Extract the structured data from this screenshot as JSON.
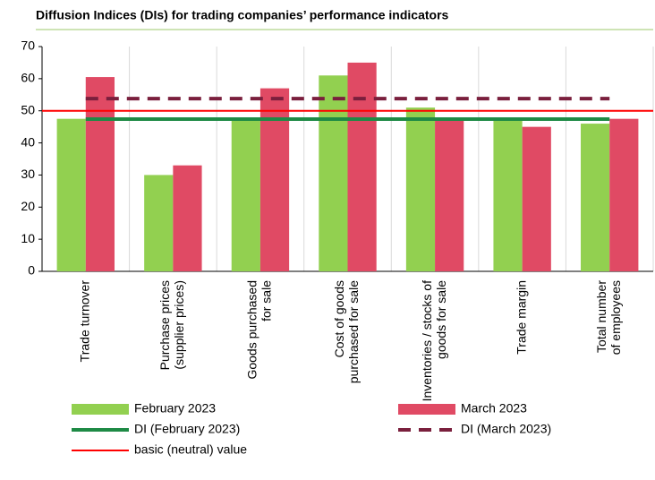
{
  "chart_data": {
    "type": "bar",
    "title": "Diffusion Indices (DIs) for trading companies’ performance  indicators",
    "categories": [
      [
        "Trade turnover"
      ],
      [
        "Purchase prices",
        "(supplier prices)"
      ],
      [
        "Goods purchased",
        "for sale"
      ],
      [
        "Cost of goods",
        "purchased for sale"
      ],
      [
        "Inventories / stocks of",
        "goods for sale"
      ],
      [
        "Trade margin"
      ],
      [
        "Total number",
        "of employees"
      ]
    ],
    "series": [
      {
        "name": "February 2023",
        "color": "#92d050",
        "values": [
          47.5,
          30,
          47,
          61,
          51,
          47,
          46
        ]
      },
      {
        "name": "March 2023",
        "color": "#e04a64",
        "values": [
          60.5,
          33,
          57,
          65,
          47,
          45,
          47.5
        ]
      }
    ],
    "lines": [
      {
        "name": "DI (February 2023)",
        "color": "#1e8a45",
        "value": 47.4,
        "dashed": false
      },
      {
        "name": "DI (March 2023)",
        "color": "#7a1f3d",
        "value": 53.8,
        "dashed": true
      },
      {
        "name": "basic (neutral) value",
        "color": "#ff0000",
        "value": 50,
        "dashed": false
      }
    ],
    "ylim": [
      0,
      70
    ],
    "yticks": [
      0,
      10,
      20,
      30,
      40,
      50,
      60,
      70
    ],
    "grid": "vertical"
  }
}
